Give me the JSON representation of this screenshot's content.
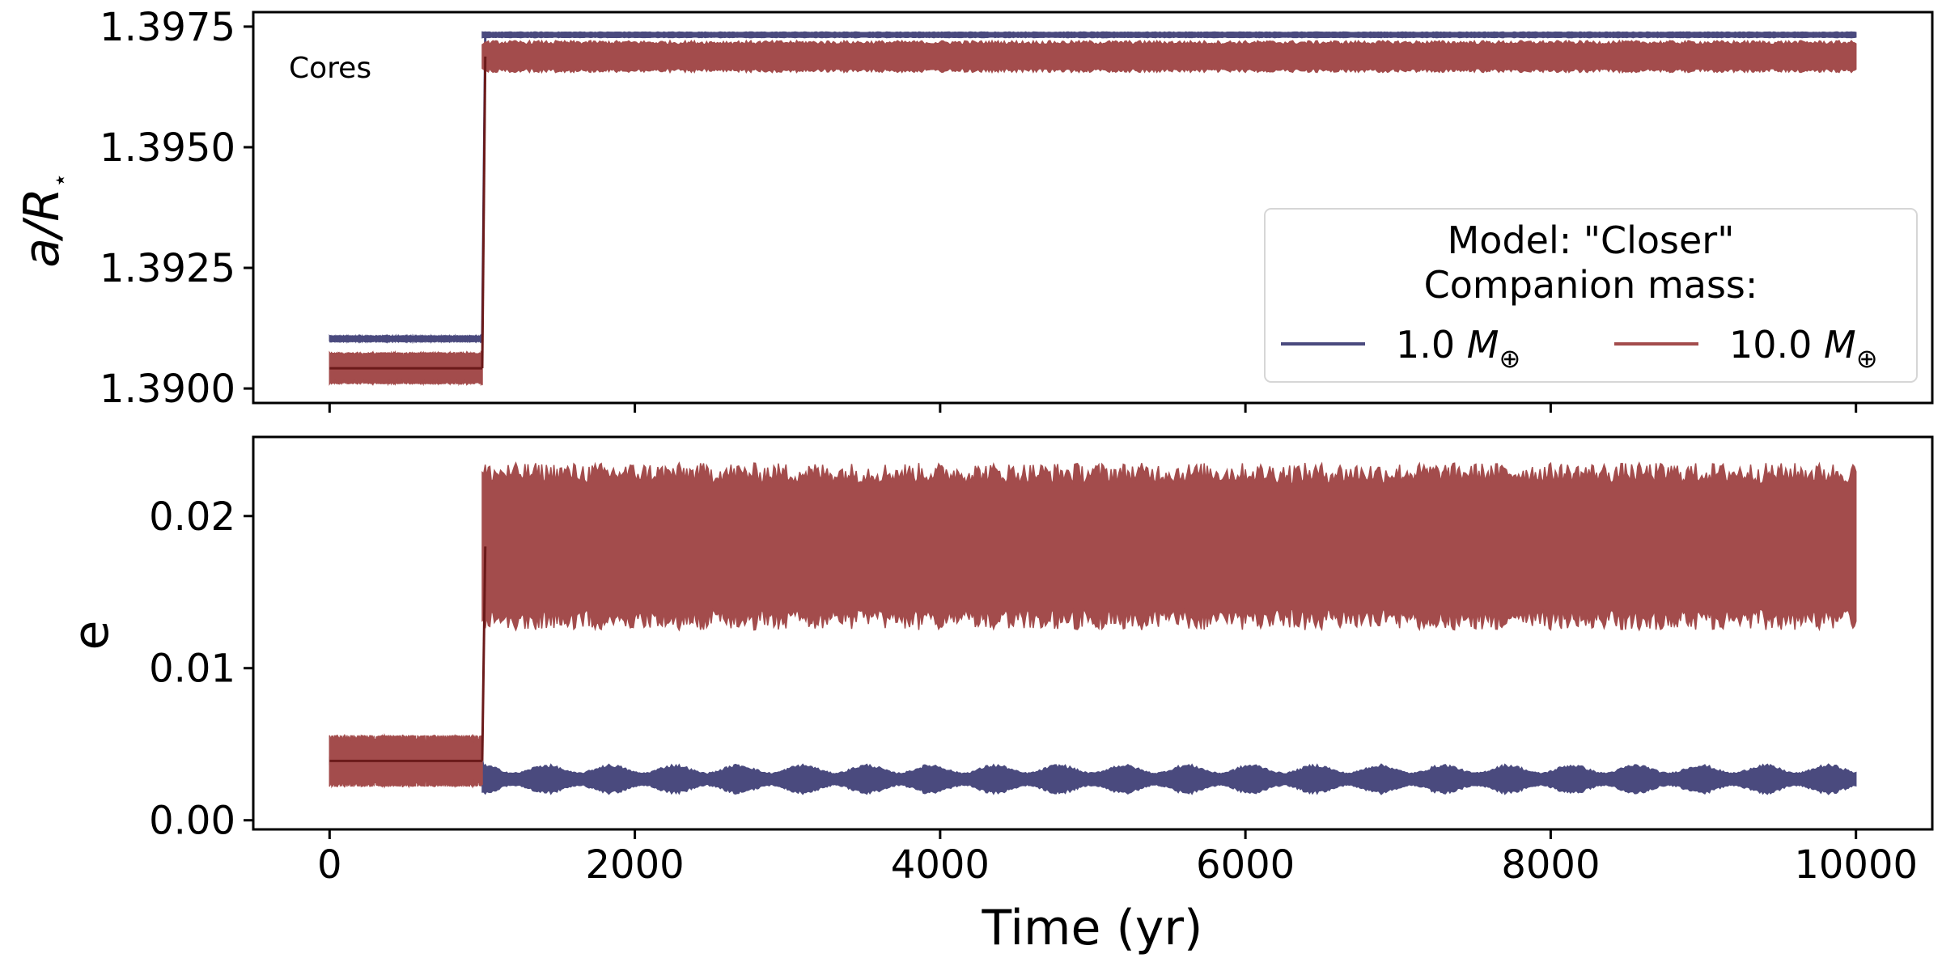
{
  "chart_data": [
    {
      "type": "line",
      "panel": "top",
      "ylabel": "a/R",
      "ylabel_subscript": "⋆",
      "ylim": [
        1.3897,
        1.3978
      ],
      "yticks": [
        1.39,
        1.3925,
        1.395,
        1.3975
      ],
      "ytick_labels": [
        "1.3900",
        "1.3925",
        "1.3950",
        "1.3975"
      ],
      "xlim": [
        -500,
        10500
      ],
      "xticks": [
        0,
        2000,
        4000,
        6000,
        8000,
        10000
      ],
      "xtick_labels_shown": false,
      "annotation": "Cores",
      "legend": {
        "placement": "lower right",
        "title_line1": "Model: \"Closer\"",
        "title_line2": "Companion mass:",
        "entries": [
          {
            "value": "1.0",
            "symbol": "M",
            "subscript": "⊕",
            "color": "#4a4a7e"
          },
          {
            "value": "10.0",
            "symbol": "M",
            "subscript": "⊕",
            "color": "#a34c4c"
          }
        ]
      },
      "series": [
        {
          "name": "1.0 M⊕",
          "color": "#4a4a7e",
          "segments": [
            {
              "x_start": 0,
              "x_end": 1000,
              "y_center": 1.39103,
              "y_half_range": 6e-05
            },
            {
              "x_start": 1000,
              "x_end": 10000,
              "y_center": 1.39733,
              "y_half_range": 6e-05
            }
          ]
        },
        {
          "name": "10.0 M⊕",
          "color": "#a34c4c",
          "segments": [
            {
              "x_start": 0,
              "x_end": 1000,
              "y_center": 1.39042,
              "y_half_range": 0.00033
            },
            {
              "x_start": 1000,
              "x_end": 10000,
              "y_center": 1.39688,
              "y_half_range": 0.00033
            }
          ],
          "mean_color": "#6b1a1a"
        }
      ]
    },
    {
      "type": "line",
      "panel": "bottom",
      "ylabel": "e",
      "xlabel": "Time (yr)",
      "ylim": [
        -0.0006,
        0.0252
      ],
      "yticks": [
        0.0,
        0.01,
        0.02
      ],
      "ytick_labels": [
        "0.00",
        "0.01",
        "0.02"
      ],
      "xlim": [
        -500,
        10500
      ],
      "xticks": [
        0,
        2000,
        4000,
        6000,
        8000,
        10000
      ],
      "xtick_labels": [
        "0",
        "2000",
        "4000",
        "6000",
        "8000",
        "10000"
      ],
      "series": [
        {
          "name": "1.0 M⊕",
          "color": "#4a4a7e",
          "segments": [
            {
              "x_start": 0,
              "x_end": 1000,
              "y_center": 0.0039,
              "y_half_range": 0.0002
            },
            {
              "x_start": 1000,
              "x_end": 10000,
              "y_center": 0.0027,
              "y_half_range": 0.001,
              "modulation_period": 420
            }
          ]
        },
        {
          "name": "10.0 M⊕",
          "color": "#a34c4c",
          "segments": [
            {
              "x_start": 0,
              "x_end": 1000,
              "y_center": 0.0039,
              "y_half_range": 0.0017
            },
            {
              "x_start": 1000,
              "x_end": 10000,
              "y_center": 0.018,
              "y_half_range": 0.0055
            }
          ],
          "mean_color": "#6b1a1a"
        }
      ]
    }
  ]
}
